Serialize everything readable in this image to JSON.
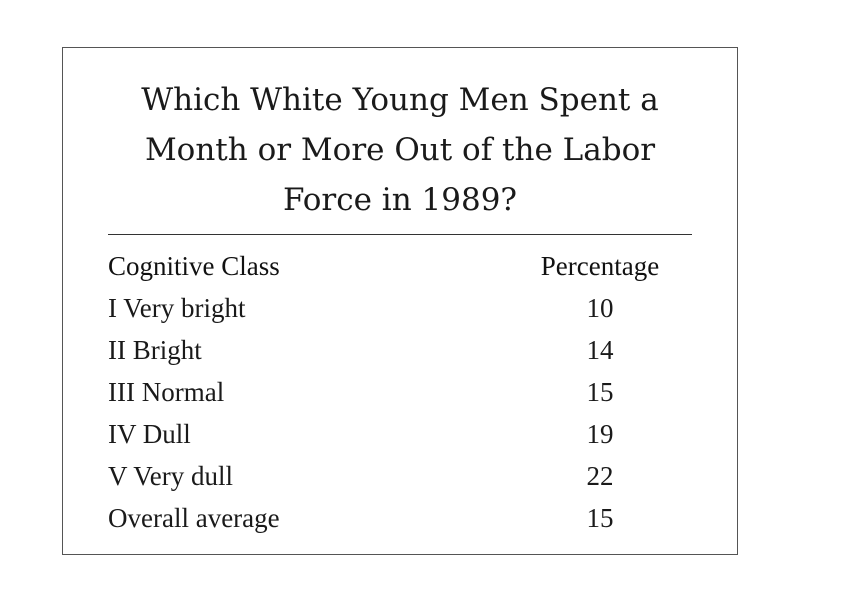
{
  "chart_data": {
    "type": "table",
    "title": "Which White Young Men Spent a\nMonth or More Out of the Labor\nForce in 1989?",
    "columns": [
      "Cognitive Class",
      "Percentage"
    ],
    "rows": [
      {
        "label": "I Very bright",
        "value": 10
      },
      {
        "label": "II Bright",
        "value": 14
      },
      {
        "label": "III Normal",
        "value": 15
      },
      {
        "label": "IV Dull",
        "value": 19
      },
      {
        "label": "V Very dull",
        "value": 22
      },
      {
        "label": "Overall average",
        "value": 15
      }
    ]
  }
}
